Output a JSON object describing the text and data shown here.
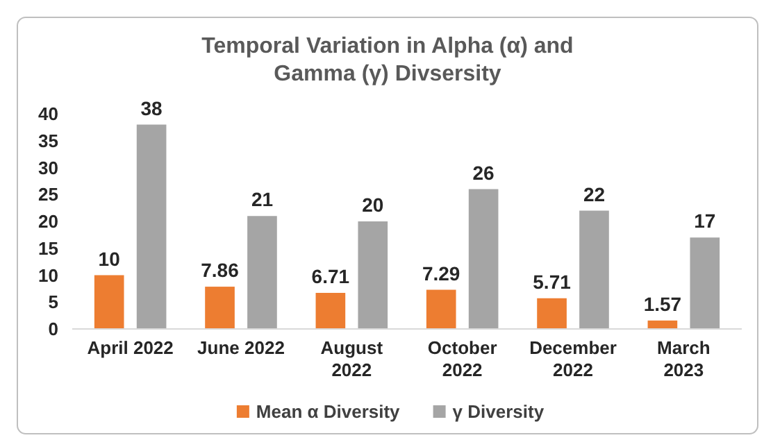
{
  "chart_data": {
    "type": "bar",
    "title": "Temporal Variation in Alpha (α)  and Gamma (γ) Divsersity",
    "categories": [
      "April 2022",
      "June 2022",
      "August 2022",
      "October 2022",
      "December 2022",
      "March 2023"
    ],
    "series": [
      {
        "name": "Mean α Diversity",
        "color": "#ed7d31",
        "values": [
          10,
          7.86,
          6.71,
          7.29,
          5.71,
          1.57
        ]
      },
      {
        "name": "γ Diversity",
        "color": "#a5a5a5",
        "values": [
          38,
          21,
          20,
          26,
          22,
          17
        ]
      }
    ],
    "ylim": [
      0,
      40
    ],
    "yticks": [
      0,
      5,
      10,
      15,
      20,
      25,
      30,
      35,
      40
    ],
    "grid": false,
    "legend": "bottom",
    "data_labels": true
  }
}
